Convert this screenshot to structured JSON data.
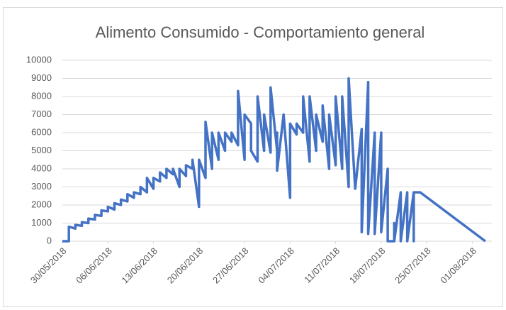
{
  "chart_data": {
    "type": "line",
    "title": "Alimento Consumido - Comportamiento general",
    "x": [
      "2018-05-30",
      "2018-05-31",
      "2018-05-31",
      "2018-06-01",
      "2018-06-01",
      "2018-06-02",
      "2018-06-02",
      "2018-06-03",
      "2018-06-03",
      "2018-06-04",
      "2018-06-04",
      "2018-06-05",
      "2018-06-05",
      "2018-06-06",
      "2018-06-06",
      "2018-06-07",
      "2018-06-07",
      "2018-06-08",
      "2018-06-08",
      "2018-06-09",
      "2018-06-09",
      "2018-06-10",
      "2018-06-10",
      "2018-06-11",
      "2018-06-11",
      "2018-06-12",
      "2018-06-12",
      "2018-06-13",
      "2018-06-13",
      "2018-06-14",
      "2018-06-14",
      "2018-06-15",
      "2018-06-15",
      "2018-06-16",
      "2018-06-16",
      "2018-06-17",
      "2018-06-17",
      "2018-06-18",
      "2018-06-18",
      "2018-06-19",
      "2018-06-19",
      "2018-06-20",
      "2018-06-20",
      "2018-06-21",
      "2018-06-21",
      "2018-06-22",
      "2018-06-22",
      "2018-06-23",
      "2018-06-23",
      "2018-06-24",
      "2018-06-24",
      "2018-06-25",
      "2018-06-25",
      "2018-06-26",
      "2018-06-26",
      "2018-06-27",
      "2018-06-27",
      "2018-06-28",
      "2018-06-28",
      "2018-06-29",
      "2018-06-29",
      "2018-06-30",
      "2018-06-30",
      "2018-07-01",
      "2018-07-01",
      "2018-07-02",
      "2018-07-02",
      "2018-07-02",
      "2018-07-03",
      "2018-07-04",
      "2018-07-04",
      "2018-07-05",
      "2018-07-05",
      "2018-07-06",
      "2018-07-06",
      "2018-07-07",
      "2018-07-07",
      "2018-07-08",
      "2018-07-08",
      "2018-07-09",
      "2018-07-09",
      "2018-07-10",
      "2018-07-10",
      "2018-07-11",
      "2018-07-11",
      "2018-07-12",
      "2018-07-12",
      "2018-07-13",
      "2018-07-13",
      "2018-07-14",
      "2018-07-15",
      "2018-07-15",
      "2018-07-16",
      "2018-07-16",
      "2018-07-17",
      "2018-07-17",
      "2018-07-18",
      "2018-07-18",
      "2018-07-19",
      "2018-07-19",
      "2018-07-20",
      "2018-07-20",
      "2018-07-20",
      "2018-07-21",
      "2018-07-21",
      "2018-07-22",
      "2018-07-22",
      "2018-07-23",
      "2018-07-23",
      "2018-07-23",
      "2018-07-24",
      "2018-08-03"
    ],
    "values": [
      0,
      0,
      800,
      700,
      900,
      850,
      1050,
      1000,
      1250,
      1200,
      1450,
      1400,
      1700,
      1650,
      1900,
      1750,
      2100,
      2000,
      2300,
      2200,
      2600,
      2400,
      2700,
      2600,
      3000,
      2700,
      3500,
      2900,
      3500,
      3300,
      3800,
      3500,
      4000,
      3700,
      4000,
      3000,
      4000,
      3600,
      4200,
      4000,
      4500,
      1900,
      4500,
      3500,
      6600,
      4000,
      6000,
      4500,
      6000,
      5000,
      6000,
      5500,
      6000,
      5300,
      8300,
      4500,
      7000,
      6500,
      5000,
      4400,
      8000,
      5000,
      7000,
      4900,
      8500,
      5000,
      6000,
      3900,
      7000,
      2400,
      6500,
      5900,
      6500,
      6000,
      8000,
      4400,
      8000,
      5000,
      7000,
      5500,
      7500,
      4000,
      7000,
      4200,
      8000,
      4000,
      8000,
      3000,
      9000,
      2900,
      6200,
      500,
      8800,
      400,
      6000,
      400,
      6000,
      500,
      4000,
      0,
      0,
      1000,
      0,
      2700,
      0,
      2700,
      0,
      2700,
      0,
      2700,
      2700,
      0
    ],
    "color": "#4472c4",
    "xlim": [
      "2018-05-30",
      "2018-08-04"
    ],
    "xticks": [
      {
        "value": "2018-05-30",
        "label": "30/05/2018"
      },
      {
        "value": "2018-06-06",
        "label": "06/06/2018"
      },
      {
        "value": "2018-06-13",
        "label": "13/06/2018"
      },
      {
        "value": "2018-06-20",
        "label": "20/06/2018"
      },
      {
        "value": "2018-06-27",
        "label": "27/06/2018"
      },
      {
        "value": "2018-07-04",
        "label": "04/07/2018"
      },
      {
        "value": "2018-07-11",
        "label": "11/07/2018"
      },
      {
        "value": "2018-07-18",
        "label": "18/07/2018"
      },
      {
        "value": "2018-07-25",
        "label": "25/07/2018"
      },
      {
        "value": "2018-08-01",
        "label": "01/08/2018"
      }
    ],
    "ylim": [
      0,
      10000
    ],
    "yticks": [
      0,
      1000,
      2000,
      3000,
      4000,
      5000,
      6000,
      7000,
      8000,
      9000,
      10000
    ],
    "grid": true
  }
}
